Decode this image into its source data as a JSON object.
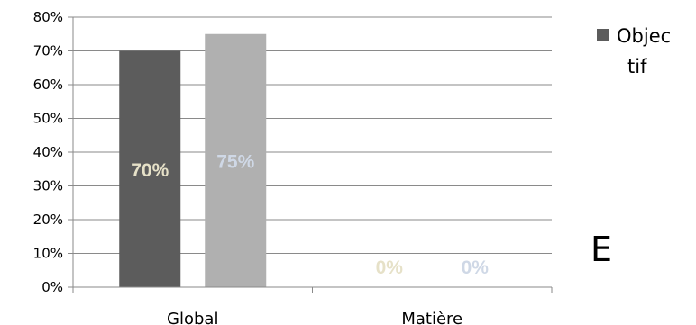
{
  "chart_data": {
    "type": "bar",
    "categories": [
      "Global",
      "Matière"
    ],
    "series": [
      {
        "values": [
          70,
          0
        ],
        "color": "#5c5c5c",
        "label_color": "#e6e1c8"
      },
      {
        "values": [
          75,
          0
        ],
        "color": "#b0b0b0",
        "label_color": "#cfd8e6"
      }
    ],
    "data_labels": [
      [
        "70%",
        "0%"
      ],
      [
        "75%",
        "0%"
      ]
    ],
    "ylim": [
      0,
      80
    ],
    "y_ticks": [
      "0%",
      "10%",
      "20%",
      "30%",
      "40%",
      "50%",
      "60%",
      "70%",
      "80%"
    ],
    "grid": true,
    "legend": {
      "position": "right",
      "entries": [
        {
          "line1": "Objec",
          "line2": "tif",
          "color": "#5c5c5c"
        }
      ]
    },
    "title": "",
    "xlabel": "",
    "ylabel": ""
  },
  "annotation_letter": "E"
}
